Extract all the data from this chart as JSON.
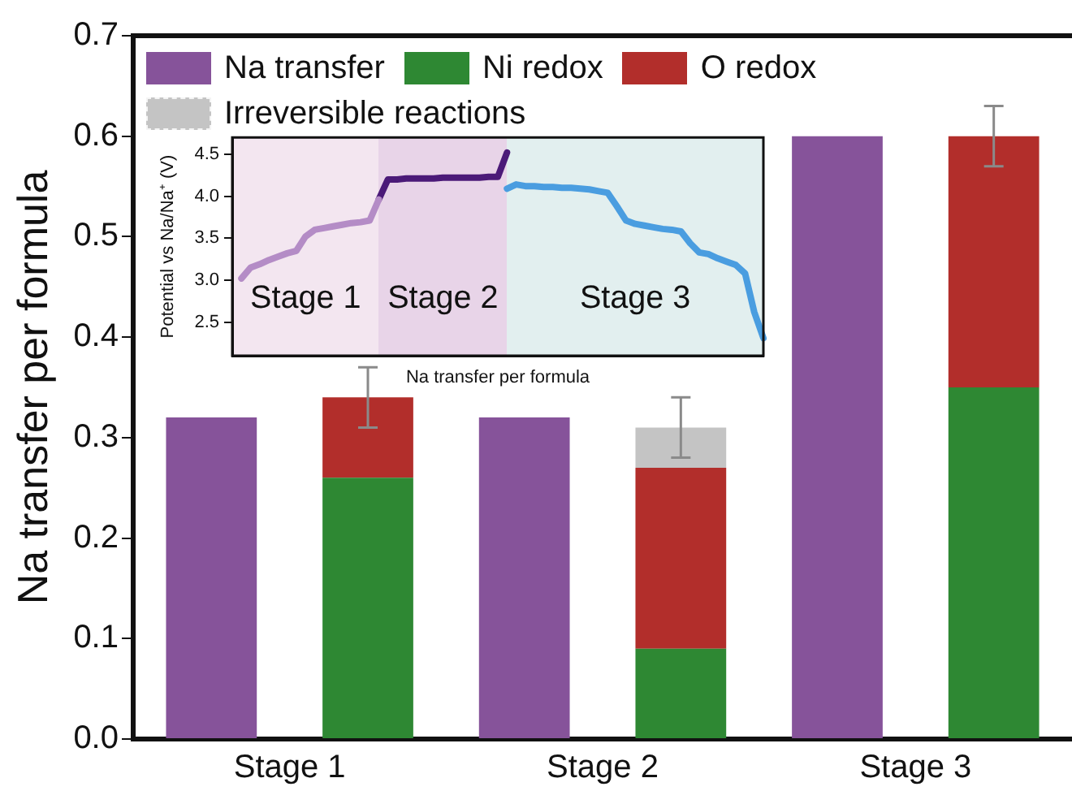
{
  "chart_data": [
    {
      "type": "bar",
      "ylabel": "Na transfer per formula",
      "categories": [
        null,
        null,
        null,
        null,
        null,
        null
      ],
      "stacked": true,
      "annotations": [
        "Stage 1",
        "Stage 2",
        "Stage 3"
      ],
      "series": [
        {
          "name": "Na transfer",
          "color": "#86539a",
          "values": [
            0.32,
            null,
            0.32,
            null,
            0.6,
            null
          ]
        },
        {
          "name": "Ni redox",
          "color": "#2e8833",
          "values": [
            null,
            0.26,
            null,
            0.09,
            null,
            0.35
          ]
        },
        {
          "name": "O redox",
          "color": "#b22e2b",
          "values": [
            null,
            0.08,
            null,
            0.18,
            null,
            0.25
          ],
          "errors": [
            null,
            0.03,
            null,
            null,
            null,
            0.03
          ]
        },
        {
          "name": "Irreversible reactions",
          "color": "#c4c4c4",
          "values": [
            null,
            null,
            null,
            0.04,
            null,
            null
          ],
          "errors": [
            null,
            null,
            null,
            0.03,
            null,
            null
          ]
        }
      ],
      "ylim": [
        0,
        0.7
      ],
      "yticks": [
        {
          "value": 0,
          "label": "0.0"
        },
        0.1,
        0.2,
        0.3,
        0.4,
        0.5,
        0.6,
        0.7
      ],
      "legend": "top left"
    },
    {
      "type": "line",
      "xlabel": "Na transfer per formula",
      "ylabel": "Potential vs Na/Na⁺ (V)",
      "ylim": [
        2.1,
        4.7
      ],
      "yticks": [
        2.5,
        {
          "value": 3,
          "label": "3.0"
        },
        3.5,
        {
          "value": 4,
          "label": "4.0"
        },
        4.5
      ],
      "tick_labels": "y",
      "categories": [
        null,
        null,
        null,
        null,
        null,
        null,
        null,
        null,
        null,
        null,
        null,
        null,
        null,
        null,
        null,
        null,
        null,
        null,
        null,
        null,
        null,
        null,
        null,
        null,
        null,
        null,
        null,
        null,
        null,
        null,
        null,
        null,
        null,
        null,
        null,
        null,
        null,
        null,
        null,
        null,
        null,
        null,
        null,
        null,
        null,
        null,
        null,
        null,
        null,
        null,
        null,
        null,
        null,
        null,
        null,
        null,
        null,
        null,
        null
      ],
      "annotations": [
        "Stage 1",
        "Stage 2",
        "Stage 3"
      ],
      "series": [
        {
          "color": "#b48cc6",
          "values": [
            null,
            3.02,
            3.15,
            3.19,
            3.24,
            3.28,
            3.32,
            3.35,
            3.52,
            3.6,
            3.62,
            3.64,
            3.66,
            3.68,
            3.69,
            3.71,
            3.96,
            null,
            null,
            null,
            null,
            null,
            null,
            null,
            null,
            null,
            null,
            null,
            null,
            null,
            null,
            null,
            null,
            null,
            null,
            null,
            null,
            null,
            null,
            null,
            null,
            null,
            null,
            null,
            null,
            null,
            null,
            null,
            null,
            null,
            null,
            null,
            null,
            null,
            null,
            null,
            null,
            null,
            null
          ]
        },
        {
          "color": "#4b1a78",
          "values": [
            null,
            null,
            null,
            null,
            null,
            null,
            null,
            null,
            null,
            null,
            null,
            null,
            null,
            null,
            null,
            null,
            3.96,
            4.2,
            4.2,
            4.21,
            4.21,
            4.21,
            4.21,
            4.22,
            4.22,
            4.22,
            4.22,
            4.22,
            4.23,
            4.23,
            4.52,
            null,
            null,
            null,
            null,
            null,
            null,
            null,
            null,
            null,
            null,
            null,
            null,
            null,
            null,
            null,
            null,
            null,
            null,
            null,
            null,
            null,
            null,
            null,
            null,
            null,
            null,
            null,
            null
          ]
        },
        {
          "color": "#4a9de0",
          "values": [
            null,
            null,
            null,
            null,
            null,
            null,
            null,
            null,
            null,
            null,
            null,
            null,
            null,
            null,
            null,
            null,
            null,
            null,
            null,
            null,
            null,
            null,
            null,
            null,
            null,
            null,
            null,
            null,
            null,
            null,
            4.09,
            4.14,
            4.12,
            4.12,
            4.11,
            4.11,
            4.1,
            4.1,
            4.09,
            4.08,
            4.06,
            4.04,
            3.88,
            3.71,
            3.67,
            3.65,
            3.63,
            3.61,
            3.6,
            3.58,
            3.44,
            3.33,
            3.31,
            3.26,
            3.22,
            3.18,
            3.08,
            2.62,
            2.31
          ]
        }
      ]
    }
  ]
}
